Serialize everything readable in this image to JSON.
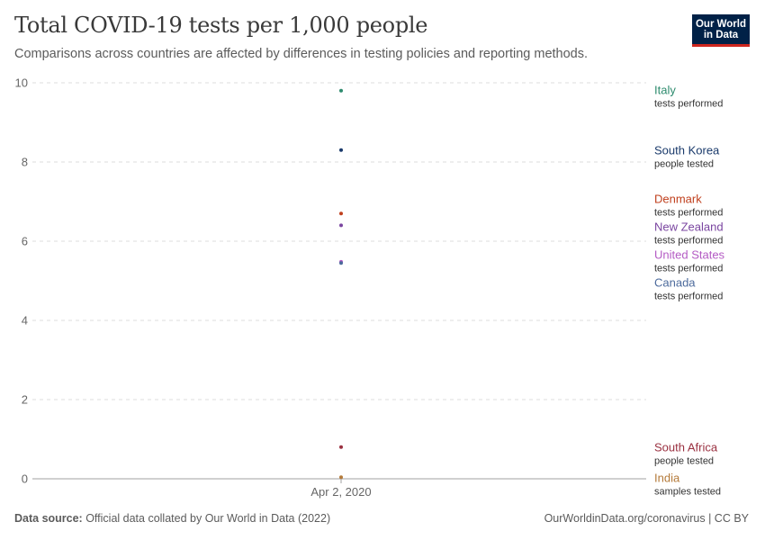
{
  "header": {
    "title": "Total COVID-19 tests per 1,000 people",
    "subtitle": "Comparisons across countries are affected by differences in testing policies and reporting methods."
  },
  "logo": {
    "line1": "Our World",
    "line2": "in Data",
    "bg_color": "#002147",
    "accent_color": "#ce261e"
  },
  "footer": {
    "source_label": "Data source:",
    "source_text": " Official data collated by Our World in Data (2022)",
    "url": "OurWorldinData.org/coronavirus",
    "separator": " | ",
    "license": "CC BY"
  },
  "chart_data": {
    "type": "scatter",
    "title": "Total COVID-19 tests per 1,000 people",
    "x_categories": [
      "Apr 2, 2020"
    ],
    "ylim": [
      0,
      10
    ],
    "yticks": [
      0,
      2,
      4,
      6,
      8,
      10
    ],
    "grid": true,
    "legend_placement": "right",
    "series": [
      {
        "name": "Italy",
        "note": "tests performed",
        "x": "Apr 2, 2020",
        "y": 9.8,
        "color": "#2e8b6e"
      },
      {
        "name": "South Korea",
        "note": "people tested",
        "x": "Apr 2, 2020",
        "y": 8.3,
        "color": "#1a3a6b"
      },
      {
        "name": "Denmark",
        "note": "tests performed",
        "x": "Apr 2, 2020",
        "y": 6.7,
        "color": "#c0401e"
      },
      {
        "name": "New Zealand",
        "note": "tests performed",
        "x": "Apr 2, 2020",
        "y": 6.4,
        "color": "#7a45a0"
      },
      {
        "name": "United States",
        "note": "tests performed",
        "x": "Apr 2, 2020",
        "y": 5.48,
        "color": "#b45bc4"
      },
      {
        "name": "Canada",
        "note": "tests performed",
        "x": "Apr 2, 2020",
        "y": 5.45,
        "color": "#4c6a9c"
      },
      {
        "name": "South Africa",
        "note": "people tested",
        "x": "Apr 2, 2020",
        "y": 0.8,
        "color": "#9a3040"
      },
      {
        "name": "India",
        "note": "samples tested",
        "x": "Apr 2, 2020",
        "y": 0.04,
        "color": "#b47a3a"
      }
    ]
  }
}
